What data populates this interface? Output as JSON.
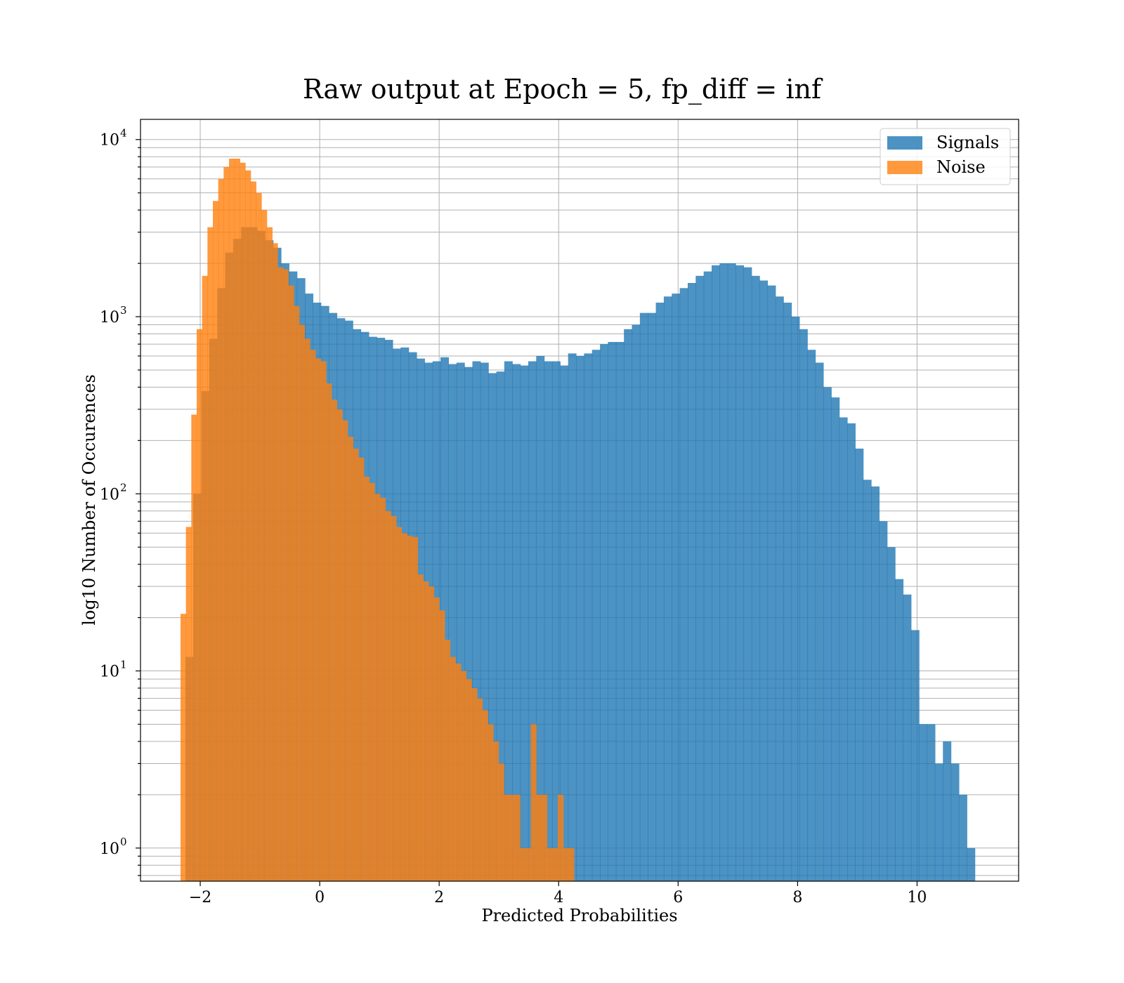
{
  "chart_data": {
    "type": "bar",
    "title": "Raw output at Epoch = 5, fp_diff = inf",
    "xlabel": "Predicted Probabilities",
    "ylabel": "log10 Number of Occurences",
    "xlim": [
      -3,
      11.7
    ],
    "ylim": [
      0.65,
      13000
    ],
    "yscale": "log",
    "grid": true,
    "legend": "top-right",
    "x_ticks": [
      -2,
      0,
      2,
      4,
      6,
      8,
      10
    ],
    "x_tick_labels": [
      "−2",
      "0",
      "2",
      "4",
      "6",
      "8",
      "10"
    ],
    "y_ticks": [
      1,
      10,
      100,
      1000,
      10000
    ],
    "y_tick_labels": [
      {
        "base": "10",
        "exp": "0"
      },
      {
        "base": "10",
        "exp": "1"
      },
      {
        "base": "10",
        "exp": "2"
      },
      {
        "base": "10",
        "exp": "3"
      },
      {
        "base": "10",
        "exp": "4"
      }
    ],
    "series": [
      {
        "name": "Signals",
        "color": "#1f77b4",
        "opacity": 0.8,
        "bin_start": -2.25,
        "bin_width": 0.1335,
        "values": [
          12,
          100,
          380,
          750,
          1450,
          2300,
          2750,
          3200,
          3200,
          3050,
          2700,
          2450,
          2000,
          1800,
          1650,
          1350,
          1200,
          1150,
          1050,
          980,
          950,
          850,
          820,
          770,
          760,
          740,
          660,
          670,
          630,
          580,
          550,
          560,
          590,
          540,
          550,
          520,
          560,
          550,
          480,
          490,
          560,
          540,
          530,
          560,
          600,
          560,
          560,
          530,
          620,
          600,
          620,
          650,
          700,
          720,
          720,
          850,
          900,
          1050,
          1050,
          1200,
          1300,
          1350,
          1450,
          1550,
          1700,
          1800,
          1950,
          2000,
          2000,
          1950,
          1900,
          1700,
          1600,
          1500,
          1300,
          1200,
          1000,
          850,
          650,
          550,
          400,
          350,
          270,
          250,
          180,
          120,
          110,
          70,
          50,
          33,
          27,
          17,
          5,
          5,
          3,
          4,
          3,
          2,
          1
        ]
      },
      {
        "name": "Noise",
        "color": "#ff7f0e",
        "opacity": 0.8,
        "bin_start": -2.33,
        "bin_width": 0.0902,
        "values": [
          21,
          65,
          280,
          850,
          1700,
          3200,
          4500,
          6000,
          7000,
          7800,
          7800,
          7400,
          6700,
          5800,
          5000,
          4000,
          3200,
          2600,
          1900,
          1850,
          1500,
          1150,
          900,
          750,
          650,
          580,
          560,
          420,
          340,
          300,
          260,
          210,
          180,
          160,
          125,
          115,
          100,
          95,
          80,
          75,
          65,
          60,
          58,
          57,
          35,
          32,
          30,
          26,
          22,
          15,
          12,
          11,
          10,
          9,
          8,
          7,
          6,
          5,
          4,
          3,
          2,
          2,
          2,
          1,
          1,
          5,
          2,
          2,
          1,
          1,
          2,
          1,
          1
        ]
      }
    ]
  }
}
